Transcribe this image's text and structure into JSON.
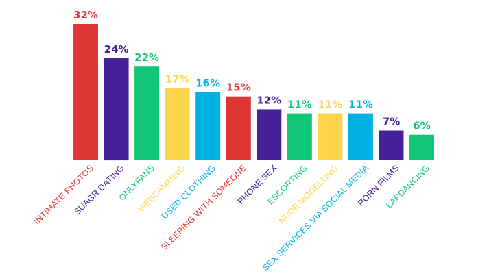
{
  "chart_data": {
    "type": "bar",
    "title": "",
    "xlabel": "",
    "ylabel": "",
    "ylim": [
      0,
      32
    ],
    "grid": false,
    "legend": "none",
    "categories": [
      "INTIMATE PHOTOS",
      "SUAGR DATING",
      "ONLYFANS",
      "WEBCAMMING",
      "USED CLOTHING",
      "SLEEPING WITH SOMEONE",
      "PHONE SEX",
      "ESCORTING",
      "NUDE MODELLING",
      "SEX SERVICES VIA SOCIAL MEDIA",
      "PORN FILMS",
      "LAPDANCING"
    ],
    "values": [
      32,
      24,
      22,
      17,
      16,
      15,
      12,
      11,
      11,
      11,
      7,
      6
    ],
    "value_labels": [
      "32%",
      "24%",
      "22%",
      "17%",
      "16%",
      "15%",
      "12%",
      "11%",
      "11%",
      "11%",
      "7%",
      "6%"
    ],
    "colors": [
      "#e03535",
      "#45219a",
      "#12c677",
      "#fdd54c",
      "#00b1e3",
      "#e03535",
      "#45219a",
      "#12c677",
      "#fdd54c",
      "#00b1e3",
      "#45219a",
      "#12c677"
    ]
  }
}
